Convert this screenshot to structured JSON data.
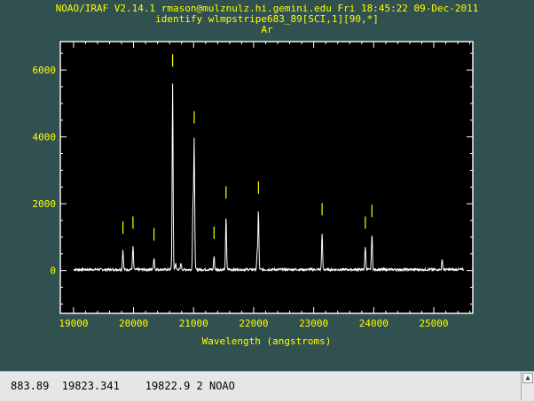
{
  "header": {
    "line1": "NOAO/IRAF V2.14.1 rmason@mulznulz.hi.gemini.edu Fri 18:45:22 09-Dec-2011",
    "line2": "identify wlmpstripe683_89[SCI,1][90,*]",
    "line3": "Ar"
  },
  "colors": {
    "background": "#315050",
    "plot_bg": "#000000",
    "axes": "#ffffff",
    "text": "#ffff00",
    "spectrum": "#ffffff",
    "line_marks": "#ffff00"
  },
  "status_bar": {
    "text": "883.89  19823.341    19822.9 2 NOAO"
  },
  "icons": {
    "scroll_up": "triangle-up-icon"
  },
  "chart_data": {
    "type": "line",
    "title": "",
    "xlabel": "Wavelength (angstroms)",
    "ylabel": "",
    "xlim": [
      18780,
      25650
    ],
    "ylim": [
      -1280,
      6850
    ],
    "x_ticks": [
      19000,
      20000,
      21000,
      22000,
      23000,
      24000,
      25000
    ],
    "x_tick_labels": [
      "19000",
      "20000",
      "21000",
      "22000",
      "23000",
      "24000",
      "25000"
    ],
    "y_ticks": [
      0,
      2000,
      4000,
      6000
    ],
    "y_tick_labels": [
      "0",
      "2000",
      "4000",
      "6000"
    ],
    "baseline": 30,
    "x_range": [
      19000,
      25500
    ],
    "peaks": [
      {
        "x": 19823,
        "y": 600
      },
      {
        "x": 19990,
        "y": 700
      },
      {
        "x": 20340,
        "y": 350
      },
      {
        "x": 20650,
        "y": 5550
      },
      {
        "x": 20700,
        "y": 180
      },
      {
        "x": 20790,
        "y": 200
      },
      {
        "x": 20990,
        "y": 1950
      },
      {
        "x": 21010,
        "y": 3850
      },
      {
        "x": 21340,
        "y": 400
      },
      {
        "x": 21540,
        "y": 1600
      },
      {
        "x": 22060,
        "y": 500
      },
      {
        "x": 22080,
        "y": 1750
      },
      {
        "x": 23140,
        "y": 1100
      },
      {
        "x": 23860,
        "y": 700
      },
      {
        "x": 23970,
        "y": 1050
      },
      {
        "x": 25140,
        "y": 280
      }
    ],
    "marked_lines": [
      {
        "x": 19823,
        "y": 1100
      },
      {
        "x": 19990,
        "y": 1250
      },
      {
        "x": 20340,
        "y": 900
      },
      {
        "x": 20650,
        "y": 6100
      },
      {
        "x": 21010,
        "y": 4400
      },
      {
        "x": 21340,
        "y": 950
      },
      {
        "x": 21540,
        "y": 2150
      },
      {
        "x": 22080,
        "y": 2300
      },
      {
        "x": 23140,
        "y": 1650
      },
      {
        "x": 23860,
        "y": 1250
      },
      {
        "x": 23970,
        "y": 1600
      }
    ],
    "grid": false
  }
}
